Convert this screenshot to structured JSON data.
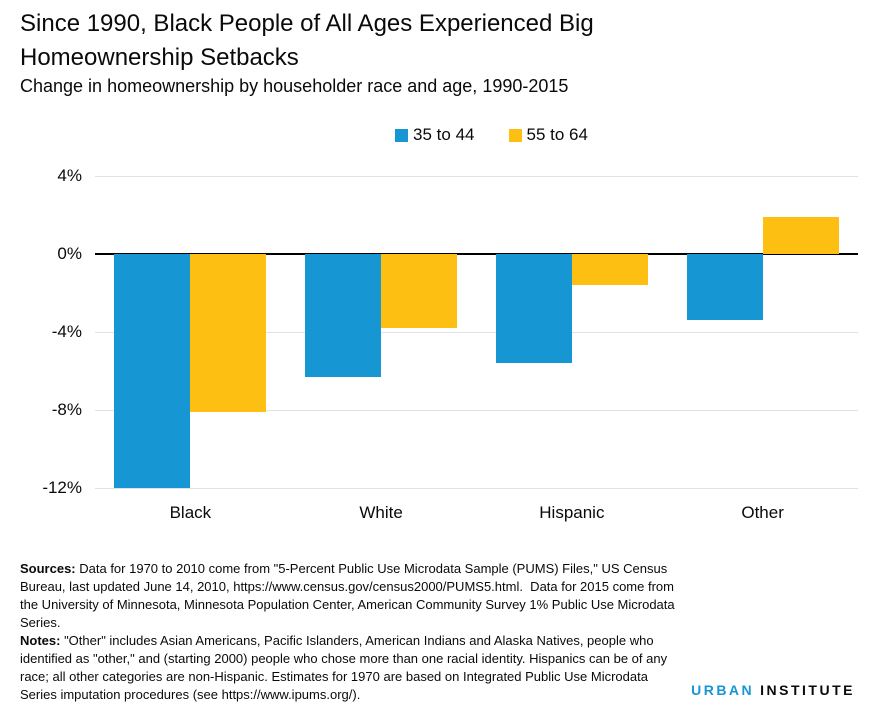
{
  "title": "Since 1990, Black People of All Ages Experienced Big Homeownership Setbacks",
  "subtitle": "Change in homeownership by householder race and age, 1990-2015",
  "colors": {
    "series1": "#1696d2",
    "series2": "#fdbf11",
    "gridline": "#e2e2e2",
    "zero_line": "#000000",
    "text": "#0a0a0a"
  },
  "chart_data": {
    "type": "bar",
    "categories": [
      "Black",
      "White",
      "Hispanic",
      "Other"
    ],
    "series": [
      {
        "name": "35 to 44",
        "color": "#1696d2",
        "values": [
          -12.0,
          -6.3,
          -5.6,
          -3.4
        ]
      },
      {
        "name": "55 to 64",
        "color": "#fdbf11",
        "values": [
          -8.1,
          -3.8,
          -1.6,
          1.9
        ]
      }
    ],
    "title": "Since 1990, Black People of All Ages Experienced Big Homeownership Setbacks",
    "subtitle": "Change in homeownership by householder race and age, 1990-2015",
    "xlabel": "",
    "ylabel": "",
    "ylim": [
      -12,
      4
    ],
    "yticks": [
      4,
      0,
      -4,
      -8,
      -12
    ],
    "ytick_labels": [
      "4%",
      "0%",
      "-4%",
      "-8%",
      "-12%"
    ],
    "grid": true,
    "legend_position": "top-center",
    "unit": "percent"
  },
  "footer": {
    "sources_label": "Sources:",
    "sources_text": " Data for 1970 to 2010 come from \"5-Percent Public Use Microdata Sample (PUMS) Files,\" US Census Bureau, last updated June 14, 2010, https://www.census.gov/census2000/PUMS5.html.  Data for 2015 come from the University of Minnesota, Minnesota Population Center, American Community Survey 1% Public Use Microdata Series.",
    "notes_label": "Notes:",
    "notes_text": " \"Other\" includes Asian Americans, Pacific Islanders, American Indians and Alaska Natives, people who identified as \"other,\" and (starting 2000) people who chose more than one racial identity. Hispanics can be of any race; all other categories are non-Hispanic. Estimates for 1970 are based on Integrated Public Use Microdata Series imputation procedures (see https://www.ipums.org/)."
  },
  "logo": {
    "part1": "URBAN",
    "part2": "INSTITUTE"
  }
}
